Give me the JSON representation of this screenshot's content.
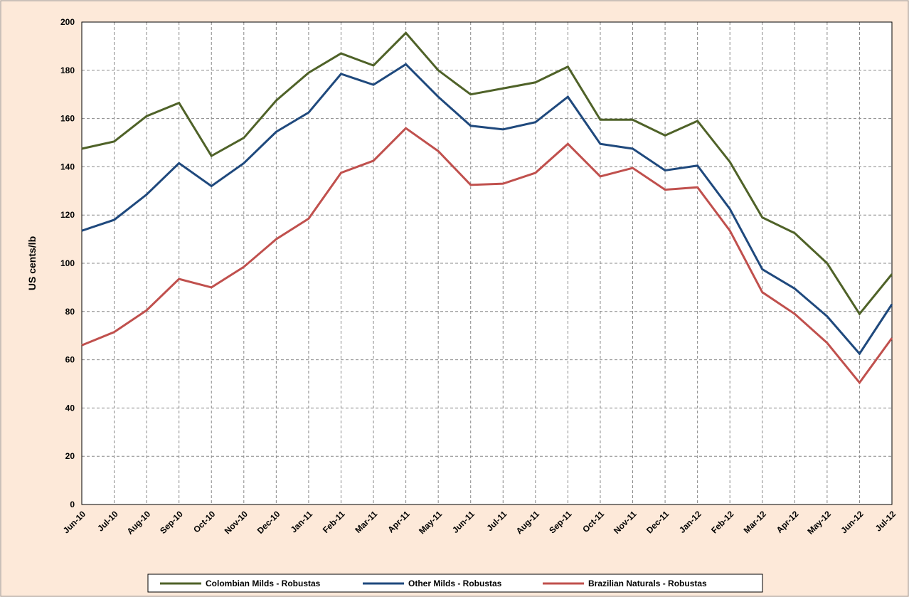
{
  "chart_data": {
    "type": "line",
    "y_label": "US cents/lb",
    "categories": [
      "Jun-10",
      "Jul-10",
      "Aug-10",
      "Sep-10",
      "Oct-10",
      "Nov-10",
      "Dec-10",
      "Jan-11",
      "Feb-11",
      "Mar-11",
      "Apr-11",
      "May-11",
      "Jun-11",
      "Jul-11",
      "Aug-11",
      "Sep-11",
      "Oct-11",
      "Nov-11",
      "Dec-11",
      "Jan-12",
      "Feb-12",
      "Mar-12",
      "Apr-12",
      "May-12",
      "Jun-12",
      "Jul-12"
    ],
    "series": [
      {
        "name": "Colombian Milds - Robustas",
        "color": "#4f6228",
        "values": [
          147.5,
          150.5,
          161,
          166.5,
          144.5,
          152,
          167.5,
          179,
          187,
          182,
          195.5,
          180,
          170,
          172.5,
          175,
          181.5,
          159.5,
          159.5,
          153,
          159,
          142,
          119,
          112.5,
          100,
          79,
          95.5
        ]
      },
      {
        "name": "Other Milds - Robustas",
        "color": "#1f497d",
        "values": [
          113.5,
          118,
          128.5,
          141.5,
          132,
          141.5,
          154.5,
          162.5,
          178.5,
          174,
          182.5,
          169,
          157,
          155.5,
          158.5,
          169,
          149.5,
          147.5,
          138.5,
          140.5,
          122.5,
          97.5,
          89.5,
          78,
          62.5,
          83
        ]
      },
      {
        "name": "Brazilian Naturals - Robustas",
        "color": "#c0504d",
        "values": [
          66,
          71.5,
          80.5,
          93.5,
          90,
          98.5,
          110,
          118.5,
          137.5,
          142.5,
          156,
          146.5,
          132.5,
          133,
          137.5,
          149.5,
          136,
          139.5,
          130.5,
          131.5,
          113.5,
          88,
          79,
          67,
          50.5,
          69
        ]
      }
    ],
    "ylim": [
      0,
      200
    ],
    "yticks": [
      0,
      20,
      40,
      60,
      80,
      100,
      120,
      140,
      160,
      180,
      200
    ],
    "grid": true
  }
}
